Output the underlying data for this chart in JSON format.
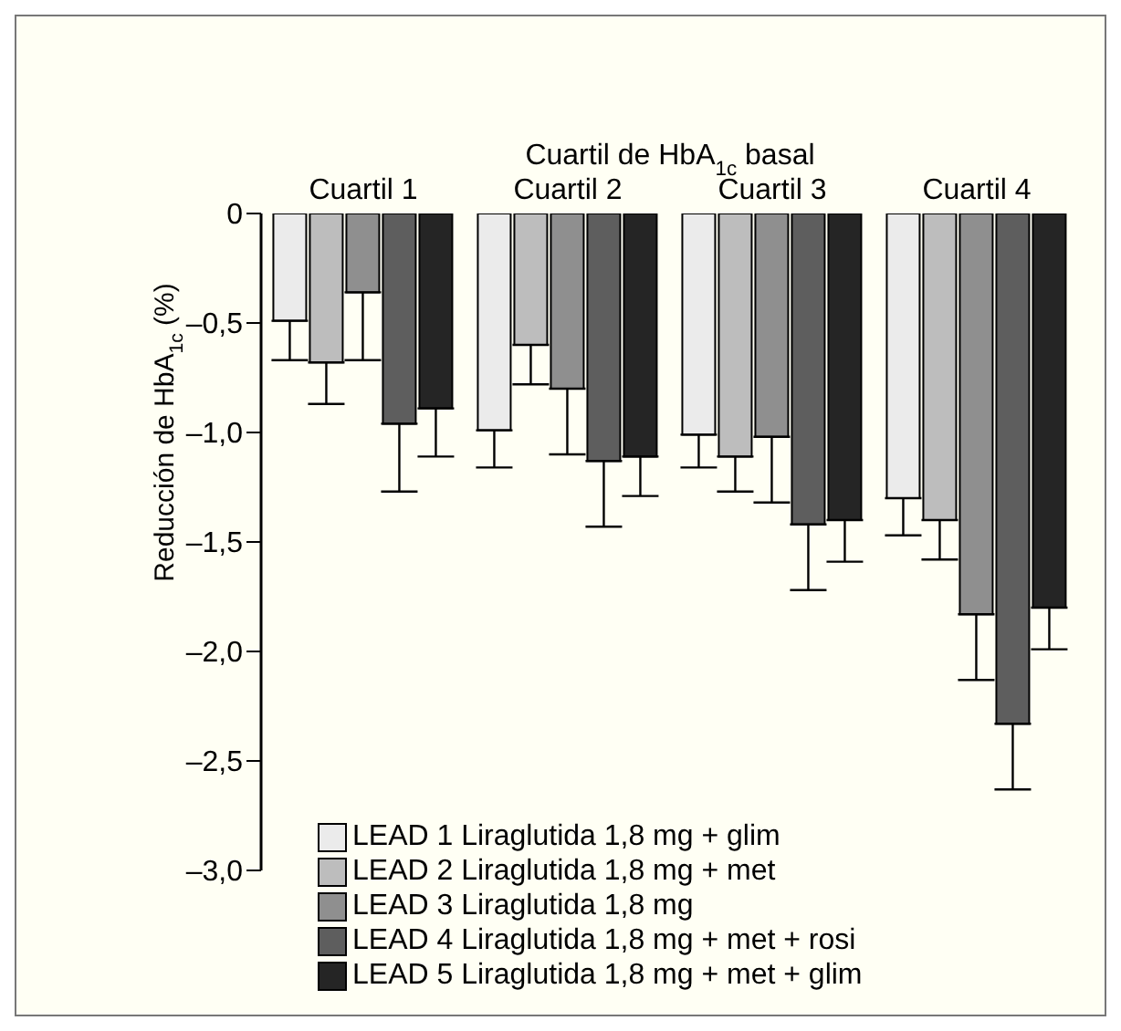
{
  "chart_data": {
    "type": "bar",
    "xlabel": "Cuartil de HbA$_{1c}$ basal",
    "ylabel": "Reducción de HbA$_{1c}$ (%)",
    "categories": [
      "Cuartil 1",
      "Cuartil 2",
      "Cuartil 3",
      "Cuartil 4"
    ],
    "series": [
      {
        "name": "LEAD 1 Liraglutida 1,8 mg + glim",
        "color": "#ebebeb",
        "values": [
          -0.49,
          -0.99,
          -1.01,
          -1.3
        ],
        "errors": [
          [
            -0.67,
            -0.49
          ],
          [
            -1.16,
            -0.99
          ],
          [
            -1.16,
            -1.01
          ],
          [
            -1.47,
            -1.3
          ]
        ]
      },
      {
        "name": "LEAD 2 Liraglutida 1,8 mg + met",
        "color": "#bdbdbd",
        "values": [
          -0.68,
          -0.6,
          -1.11,
          -1.4
        ],
        "errors": [
          [
            -0.87,
            -0.68
          ],
          [
            -0.78,
            -0.6
          ],
          [
            -1.27,
            -1.11
          ],
          [
            -1.58,
            -1.4
          ]
        ]
      },
      {
        "name": "LEAD 3 Liraglutida 1,8 mg",
        "color": "#8f8f8f",
        "values": [
          -0.36,
          -0.8,
          -1.02,
          -1.83
        ],
        "errors": [
          [
            -0.67,
            -0.36
          ],
          [
            -1.1,
            -0.8
          ],
          [
            -1.32,
            -1.02
          ],
          [
            -2.13,
            -1.83
          ]
        ]
      },
      {
        "name": "LEAD 4 Liraglutida 1,8 mg + met + rosi",
        "color": "#5e5e5e",
        "values": [
          -0.96,
          -1.13,
          -1.42,
          -2.33
        ],
        "errors": [
          [
            -1.27,
            -0.96
          ],
          [
            -1.43,
            -1.13
          ],
          [
            -1.72,
            -1.42
          ],
          [
            -2.63,
            -2.33
          ]
        ]
      },
      {
        "name": "LEAD 5 Liraglutida 1,8 mg + met + glim",
        "color": "#252525",
        "values": [
          -0.89,
          -1.11,
          -1.4,
          -1.8
        ],
        "errors": [
          [
            -1.11,
            -0.89
          ],
          [
            -1.29,
            -1.11
          ],
          [
            -1.59,
            -1.4
          ],
          [
            -1.99,
            -1.8
          ]
        ]
      }
    ],
    "ylim": [
      -3.0,
      0
    ],
    "yticks": [
      0,
      {
        "value": -0.5,
        "label": "–0,5"
      },
      {
        "value": -1.0,
        "label": "–1,0"
      },
      {
        "value": -1.5,
        "label": "–1,5"
      },
      {
        "value": -2.0,
        "label": "–2,0"
      },
      {
        "value": -2.5,
        "label": "–2,5"
      },
      {
        "value": -3.0,
        "label": "–3,0"
      }
    ],
    "grid": false,
    "legend": "bottom left"
  }
}
